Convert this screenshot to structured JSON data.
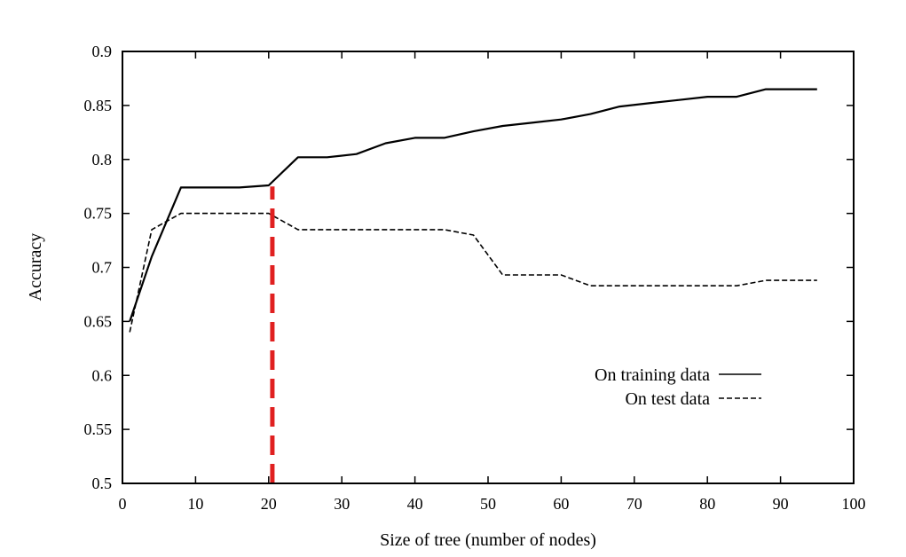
{
  "chart_data": {
    "type": "line",
    "title": "",
    "xlabel": "Size of tree (number of nodes)",
    "ylabel": "Accuracy",
    "xlim": [
      0,
      100
    ],
    "ylim": [
      0.5,
      0.9
    ],
    "x_ticks": [
      "0",
      "10",
      "20",
      "30",
      "40",
      "50",
      "60",
      "70",
      "80",
      "90",
      "100"
    ],
    "y_ticks": [
      "0.5",
      "0.55",
      "0.6",
      "0.65",
      "0.7",
      "0.75",
      "0.8",
      "0.85",
      "0.9"
    ],
    "grid": false,
    "legend_position": "bottom-right",
    "series": [
      {
        "name": "On training data",
        "style": "solid",
        "color": "#000000",
        "points": [
          [
            1,
            0.65
          ],
          [
            4,
            0.71
          ],
          [
            8,
            0.774
          ],
          [
            12,
            0.774
          ],
          [
            16,
            0.774
          ],
          [
            20,
            0.776
          ],
          [
            24,
            0.802
          ],
          [
            28,
            0.802
          ],
          [
            32,
            0.805
          ],
          [
            36,
            0.815
          ],
          [
            40,
            0.82
          ],
          [
            44,
            0.82
          ],
          [
            48,
            0.826
          ],
          [
            52,
            0.831
          ],
          [
            56,
            0.834
          ],
          [
            60,
            0.837
          ],
          [
            64,
            0.842
          ],
          [
            68,
            0.849
          ],
          [
            72,
            0.852
          ],
          [
            76,
            0.855
          ],
          [
            80,
            0.858
          ],
          [
            84,
            0.858
          ],
          [
            88,
            0.865
          ],
          [
            92,
            0.865
          ],
          [
            95,
            0.865
          ]
        ]
      },
      {
        "name": "On test data",
        "style": "dashed",
        "color": "#000000",
        "points": [
          [
            1,
            0.64
          ],
          [
            4,
            0.735
          ],
          [
            8,
            0.75
          ],
          [
            12,
            0.75
          ],
          [
            16,
            0.75
          ],
          [
            20,
            0.75
          ],
          [
            24,
            0.735
          ],
          [
            28,
            0.735
          ],
          [
            32,
            0.735
          ],
          [
            36,
            0.735
          ],
          [
            40,
            0.735
          ],
          [
            44,
            0.735
          ],
          [
            48,
            0.73
          ],
          [
            52,
            0.693
          ],
          [
            56,
            0.693
          ],
          [
            60,
            0.693
          ],
          [
            64,
            0.683
          ],
          [
            68,
            0.683
          ],
          [
            72,
            0.683
          ],
          [
            76,
            0.683
          ],
          [
            80,
            0.683
          ],
          [
            84,
            0.683
          ],
          [
            88,
            0.688
          ],
          [
            92,
            0.688
          ],
          [
            95,
            0.688
          ]
        ]
      }
    ],
    "annotations": [
      {
        "type": "vertical-line",
        "x": 20.5,
        "y_from": 0.5,
        "y_to": 0.775,
        "color": "#e02020",
        "style": "dashed"
      }
    ]
  }
}
